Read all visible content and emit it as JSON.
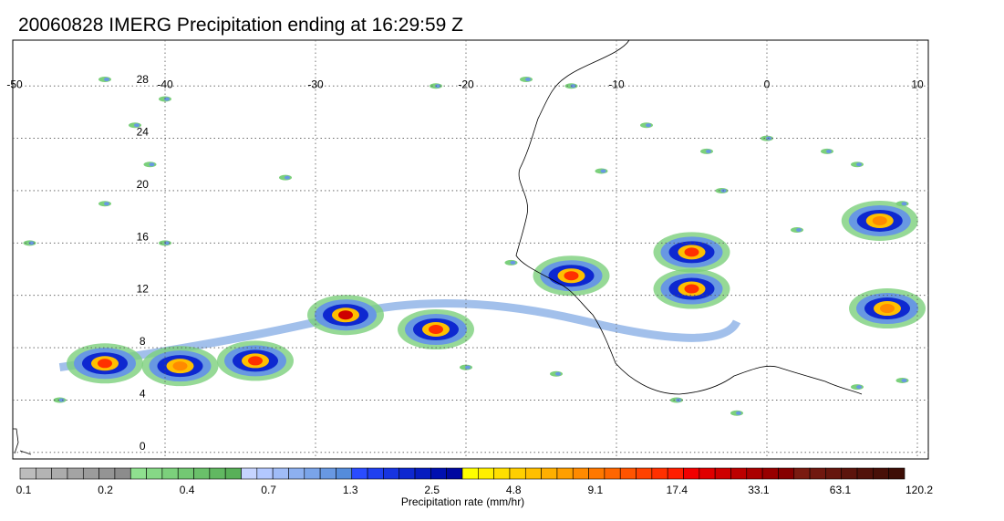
{
  "title": "20060828 IMERG Precipitation ending at 16:29:59 Z",
  "map": {
    "lon_range": [
      -50,
      10
    ],
    "lat_range": [
      -0.5,
      31.5
    ],
    "lon_ticks": [
      {
        "value": -50,
        "label": "-50"
      },
      {
        "value": -40,
        "label": "-40"
      },
      {
        "value": -30,
        "label": "-30"
      },
      {
        "value": -20,
        "label": "-20"
      },
      {
        "value": -10,
        "label": "-10"
      },
      {
        "value": 0,
        "label": "0"
      },
      {
        "value": 10,
        "label": "10"
      }
    ],
    "lat_ticks": [
      {
        "value": 0,
        "label": "0"
      },
      {
        "value": 4,
        "label": "4"
      },
      {
        "value": 8,
        "label": "8"
      },
      {
        "value": 12,
        "label": "12"
      },
      {
        "value": 16,
        "label": "16"
      },
      {
        "value": 20,
        "label": "20"
      },
      {
        "value": 24,
        "label": "24"
      },
      {
        "value": 28,
        "label": "28"
      }
    ],
    "gridlines": true
  },
  "colorbar": {
    "title": "Precipitation rate (mm/hr)",
    "labels": [
      "0.1",
      "0.2",
      "0.4",
      "0.7",
      "1.3",
      "2.5",
      "4.8",
      "9.1",
      "17.4",
      "33.1",
      "63.1",
      "120.2"
    ],
    "colors": [
      "#bcbcbc",
      "#b4b4b4",
      "#acacac",
      "#a4a4a4",
      "#9c9c9c",
      "#949494",
      "#8c8c8c",
      "#8fe08f",
      "#86d886",
      "#7cd07c",
      "#73c873",
      "#6ac06a",
      "#61b861",
      "#58b058",
      "#c6d4ff",
      "#b3c8ff",
      "#a0bcf7",
      "#8db0f0",
      "#7aa4e9",
      "#6898e2",
      "#558cdb",
      "#2a4cff",
      "#2040f0",
      "#1734e0",
      "#0e28d0",
      "#061cc0",
      "#0010b0",
      "#0008a0",
      "#ffff00",
      "#ffef00",
      "#ffdf00",
      "#ffcf00",
      "#ffbf00",
      "#ffaf00",
      "#ff9f00",
      "#ff8a00",
      "#ff7800",
      "#ff6600",
      "#ff5400",
      "#ff4200",
      "#ff3000",
      "#ff1e00",
      "#f20000",
      "#e00000",
      "#ce0000",
      "#bc0000",
      "#aa0000",
      "#980000",
      "#860000",
      "#7a1a10",
      "#701810",
      "#66160e",
      "#5c140c",
      "#52120a",
      "#481008",
      "#3e0e06"
    ]
  },
  "storm_systems": [
    {
      "lon": -34,
      "lat": 7.0,
      "peak": "17.4"
    },
    {
      "lon": -28,
      "lat": 10.5,
      "peak": "33.1"
    },
    {
      "lon": -22,
      "lat": 9.4,
      "peak": "17.4"
    },
    {
      "lon": -13,
      "lat": 13.5,
      "peak": "17.4"
    },
    {
      "lon": -5,
      "lat": 15.3,
      "peak": "17.4"
    },
    {
      "lon": -5,
      "lat": 12.5,
      "peak": "17.4"
    },
    {
      "lon": 8,
      "lat": 11.0,
      "peak": "9.1"
    },
    {
      "lon": 7.5,
      "lat": 17.7,
      "peak": "9.1"
    },
    {
      "lon": -44,
      "lat": 6.8,
      "peak": "17.4"
    },
    {
      "lon": -39,
      "lat": 6.6,
      "peak": "9.1"
    }
  ]
}
